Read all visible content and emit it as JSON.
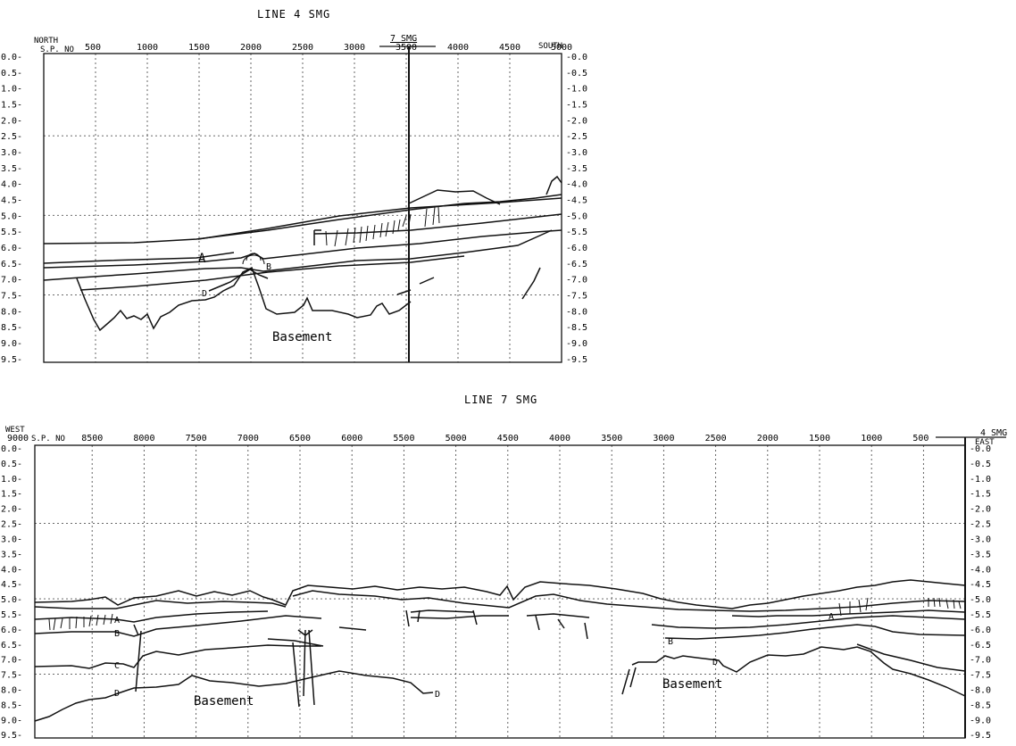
{
  "panels": [
    {
      "id": "line4",
      "title": "LINE 4 SMG",
      "left_direction": "NORTH",
      "right_direction": "SOUTH",
      "sp_label": "S.P. NO",
      "crossing_label": "7 SMG",
      "sp_ticks": [
        "500",
        "1000",
        "1500",
        "2000",
        "2500",
        "3000",
        "3500",
        "4000",
        "4500",
        "5000"
      ],
      "time_ticks": [
        "0.0",
        "0.5",
        "1.0",
        "1.5",
        "2.0",
        "2.5",
        "3.0",
        "3.5",
        "4.0",
        "4.5",
        "5.0",
        "5.5",
        "6.0",
        "6.5",
        "7.0",
        "7.5",
        "8.0",
        "8.5",
        "9.0",
        "9.5"
      ],
      "horizon_labels": [
        "A",
        "B",
        "D"
      ],
      "basement_label": "Basement"
    },
    {
      "id": "line7",
      "title": "LINE 7 SMG",
      "left_direction": "WEST",
      "right_direction": "EAST",
      "sp_label": "S.P. NO",
      "crossing_label": "4 SMG",
      "sp_ticks": [
        "9000",
        "8500",
        "8000",
        "7500",
        "7000",
        "6500",
        "6000",
        "5500",
        "5000",
        "4500",
        "4000",
        "3500",
        "3000",
        "2500",
        "2000",
        "1500",
        "1000",
        "500"
      ],
      "time_ticks": [
        "0.0",
        "0.5",
        "1.0",
        "1.5",
        "2.0",
        "2.5",
        "3.0",
        "3.5",
        "4.0",
        "4.5",
        "5.0",
        "5.5",
        "6.0",
        "6.5",
        "7.0",
        "7.5",
        "8.0",
        "8.5",
        "9.0",
        "9.5"
      ],
      "horizon_labels": [
        "A",
        "B",
        "C",
        "D",
        "A",
        "B",
        "D",
        "D"
      ],
      "basement_labels": [
        "Basement",
        "Basement"
      ]
    }
  ]
}
